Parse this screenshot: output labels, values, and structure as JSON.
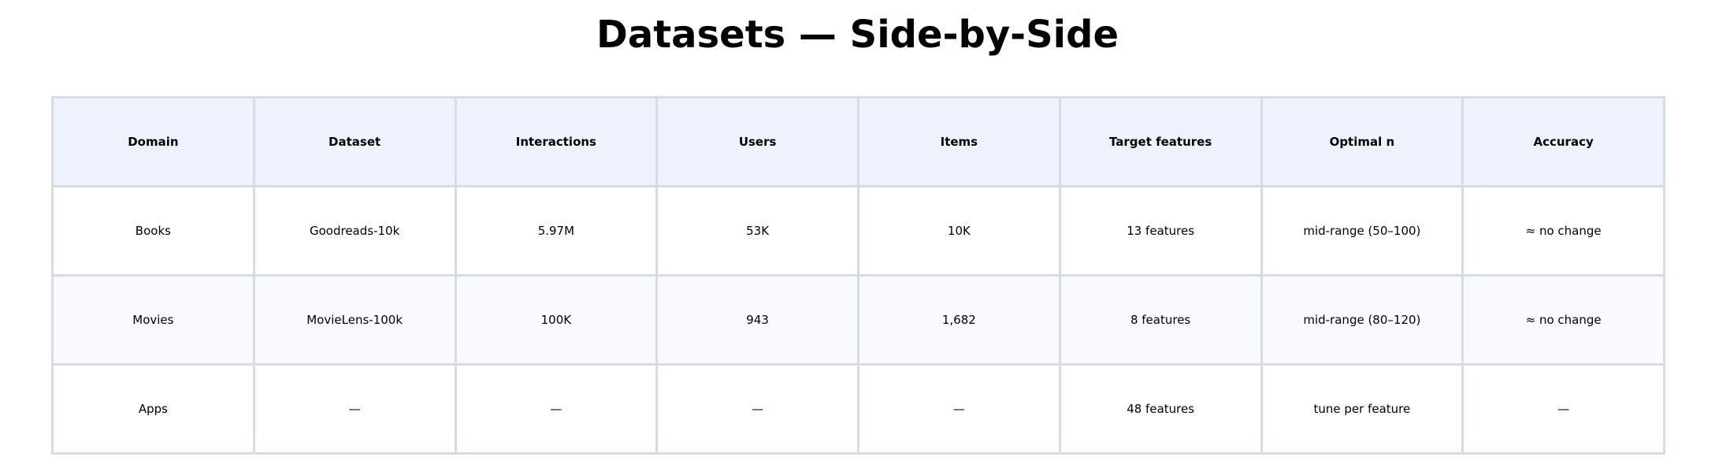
{
  "chart_data": {
    "type": "table",
    "title": "Datasets — Side-by-Side",
    "columns": [
      "Domain",
      "Dataset",
      "Interactions",
      "Users",
      "Items",
      "Target features",
      "Optimal n",
      "Accuracy"
    ],
    "rows": [
      [
        "Books",
        "Goodreads-10k",
        "5.97M",
        "53K",
        "10K",
        "13 features",
        "mid-range (50–100)",
        "≈ no change"
      ],
      [
        "Movies",
        "MovieLens-100k",
        "100K",
        "943",
        "1,682",
        "8 features",
        "mid-range (80–120)",
        "≈ no change"
      ],
      [
        "Apps",
        "—",
        "—",
        "—",
        "—",
        "48 features",
        "tune per feature",
        "—"
      ]
    ]
  },
  "colors": {
    "header_bg": "#eef2fd",
    "row_alt_bg": "#f9fafe",
    "border": "#d6dbe6"
  }
}
